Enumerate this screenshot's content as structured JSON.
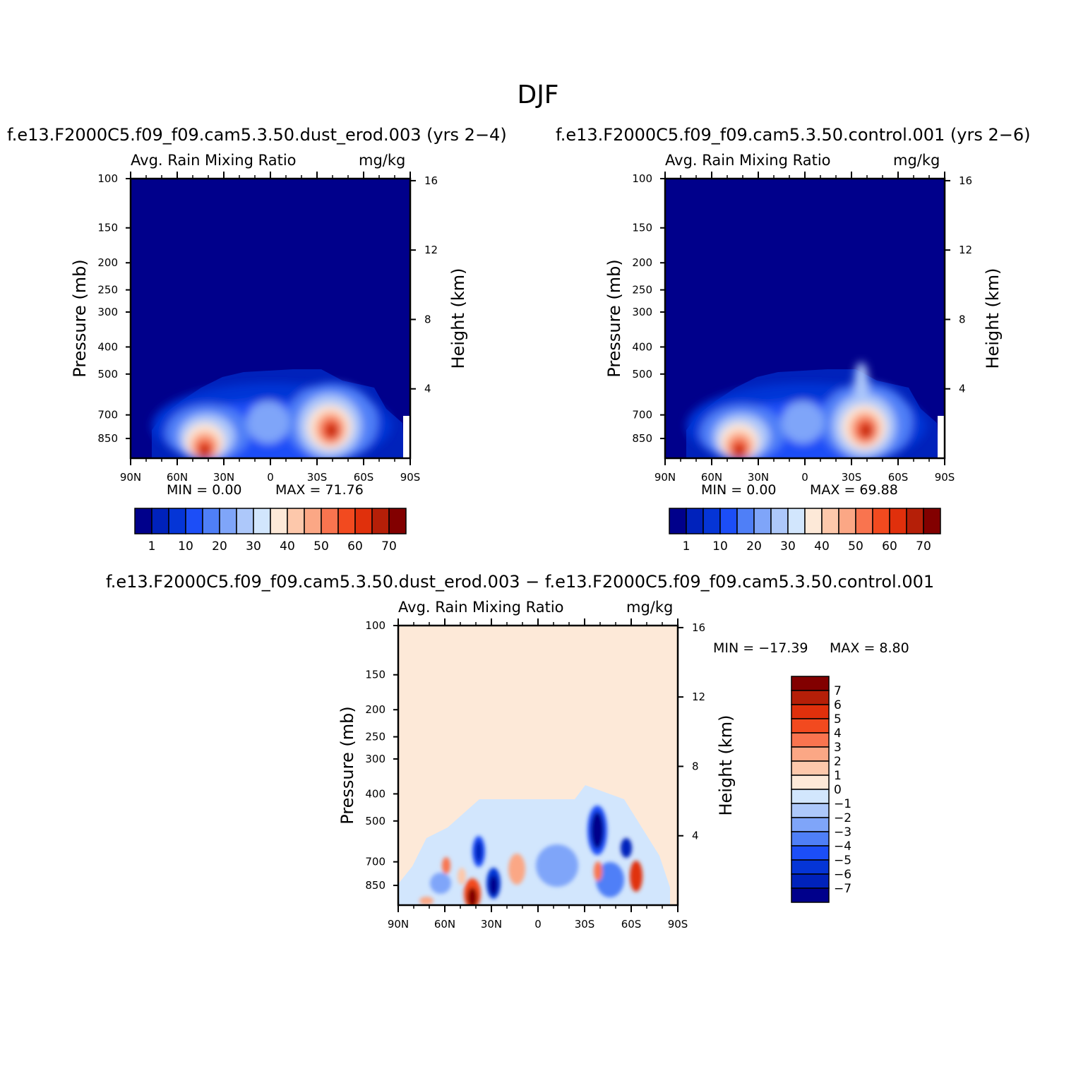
{
  "page": {
    "main_title": "DJF"
  },
  "colors": {
    "levels": [
      "#00008b",
      "#0022bb",
      "#0535d6",
      "#1c4ef7",
      "#4f7ff7",
      "#7fa5f9",
      "#adc8fa",
      "#d2e6fd",
      "#fde9d8",
      "#fdc8ab",
      "#fba785",
      "#f9744f",
      "#f24a1f",
      "#e0300c",
      "#b51f08",
      "#820000"
    ],
    "diff_levels": [
      "#00008b",
      "#0022bb",
      "#0535d6",
      "#1c4ef7",
      "#4f7ff7",
      "#7fa5f9",
      "#adc8fa",
      "#d2e6fd",
      "#fde9d8",
      "#fdc8ab",
      "#fba785",
      "#f9744f",
      "#f24a1f",
      "#e0300c",
      "#b51f08",
      "#820000"
    ]
  },
  "chart_data": [
    {
      "type": "contour",
      "case_title": "f.e13.F2000C5.f09_f09.cam5.3.50.dust_erod.003 (yrs 2−4)",
      "field_label": "Avg. Rain Mixing Ratio",
      "units": "mg/kg",
      "ylabel": "Pressure (mb)",
      "y2label": "Height (km)",
      "x_ticks": [
        "90N",
        "60N",
        "30N",
        "0",
        "30S",
        "60S",
        "90S"
      ],
      "y_ticks": [
        "100",
        "150",
        "200",
        "250",
        "300",
        "400",
        "500",
        "700",
        "850"
      ],
      "y_tick_values": [
        100,
        150,
        200,
        250,
        300,
        400,
        500,
        700,
        850
      ],
      "y2_ticks": [
        "16",
        "12",
        "8",
        "4"
      ],
      "y2_tick_values": [
        16,
        12,
        8,
        4
      ],
      "min_text": "MIN =    0.00",
      "max_text": "MAX =   71.76",
      "min": 0.0,
      "max": 71.76,
      "colorbar_labels": [
        "1",
        "10",
        "20",
        "30",
        "40",
        "50",
        "60",
        "70"
      ],
      "peaks": [
        {
          "lat": 40,
          "pressure": 900,
          "value": 60
        },
        {
          "lat": -38,
          "pressure": 715,
          "value": 71.76
        }
      ]
    },
    {
      "type": "contour",
      "case_title": "f.e13.F2000C5.f09_f09.cam5.3.50.control.001 (yrs 2−6)",
      "field_label": "Avg. Rain Mixing Ratio",
      "units": "mg/kg",
      "ylabel": "Pressure (mb)",
      "y2label": "Height (km)",
      "x_ticks": [
        "90N",
        "60N",
        "30N",
        "0",
        "30S",
        "60S",
        "90S"
      ],
      "y_ticks": [
        "100",
        "150",
        "200",
        "250",
        "300",
        "400",
        "500",
        "700",
        "850"
      ],
      "y_tick_values": [
        100,
        150,
        200,
        250,
        300,
        400,
        500,
        700,
        850
      ],
      "y2_ticks": [
        "16",
        "12",
        "8",
        "4"
      ],
      "y2_tick_values": [
        16,
        12,
        8,
        4
      ],
      "min_text": "MIN =    0.00",
      "max_text": "MAX =   69.88",
      "min": 0.0,
      "max": 69.88,
      "colorbar_labels": [
        "1",
        "10",
        "20",
        "30",
        "40",
        "50",
        "60",
        "70"
      ],
      "peaks": [
        {
          "lat": 40,
          "pressure": 900,
          "value": 55
        },
        {
          "lat": -40,
          "pressure": 730,
          "value": 69.88
        }
      ]
    },
    {
      "type": "contour",
      "case_title": "f.e13.F2000C5.f09_f09.cam5.3.50.dust_erod.003 − f.e13.F2000C5.f09_f09.cam5.3.50.control.001",
      "field_label": "Avg. Rain Mixing Ratio",
      "units": "mg/kg",
      "ylabel": "Pressure (mb)",
      "y2label": "Height (km)",
      "x_ticks": [
        "90N",
        "60N",
        "30N",
        "0",
        "30S",
        "60S",
        "90S"
      ],
      "y_ticks": [
        "100",
        "150",
        "200",
        "250",
        "300",
        "400",
        "500",
        "700",
        "850"
      ],
      "y_tick_values": [
        100,
        150,
        200,
        250,
        300,
        400,
        500,
        700,
        850
      ],
      "y2_ticks": [
        "16",
        "12",
        "8",
        "4"
      ],
      "y2_tick_values": [
        16,
        12,
        8,
        4
      ],
      "min_text": "MIN =  −17.39",
      "max_text": "MAX =     8.80",
      "min": -17.39,
      "max": 8.8,
      "colorbar_labels": [
        "7",
        "6",
        "5",
        "4",
        "3",
        "2",
        "1",
        "0",
        "−1",
        "−2",
        "−3",
        "−4",
        "−5",
        "−6",
        "−7"
      ]
    }
  ]
}
